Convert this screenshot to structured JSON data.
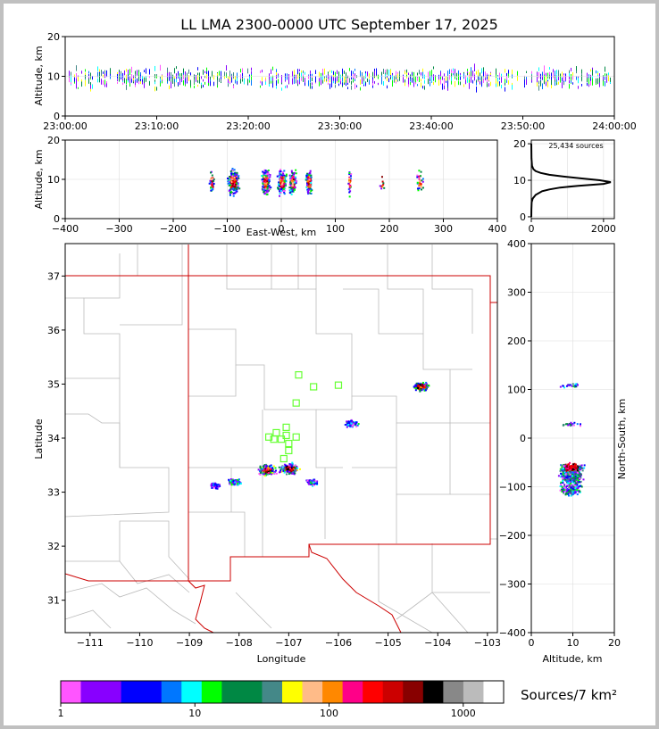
{
  "title": "LL LMA 2300-0000 UTC September 17, 2025",
  "colorbar": {
    "label": "Sources/7 km²",
    "tick_labels": [
      "1",
      "10",
      "100",
      "1000"
    ],
    "colors": [
      "#ff55ff",
      "#8800ff",
      "#8800ff",
      "#0000ff",
      "#0000ff",
      "#0077ff",
      "#00ffff",
      "#00ff00",
      "#008844",
      "#008844",
      "#448888",
      "#ffff00",
      "#ffbb88",
      "#ff8800",
      "#ff0088",
      "#ff0000",
      "#cc0000",
      "#880000",
      "#000000",
      "#888888",
      "#bbbbbb",
      "#ffffff"
    ]
  },
  "chart_data": [
    {
      "id": "time-altitude",
      "type": "scatter",
      "ylabel": "Altitude, km",
      "ylim": [
        0,
        20
      ],
      "yticks": [
        "0",
        "10",
        "20"
      ],
      "xlim": [
        "23:00:00",
        "24:00:00"
      ],
      "xticks": [
        "23:00:00",
        "23:10:00",
        "23:20:00",
        "23:30:00",
        "23:40:00",
        "23:50:00",
        "24:00:00"
      ],
      "altitude_band": [
        5,
        14
      ],
      "peak_altitude": 9.5
    },
    {
      "id": "east-west-altitude",
      "type": "scatter",
      "xlabel": "East-West, km",
      "ylabel": "Altitude, km",
      "xlim": [
        -400,
        400
      ],
      "ylim": [
        0,
        20
      ],
      "xticks": [
        "−400",
        "−300",
        "−200",
        "−100",
        "0",
        "100",
        "200",
        "300",
        "400"
      ],
      "yticks": [
        "0",
        "10",
        "20"
      ],
      "clusters_ew_km": [
        -130,
        -90,
        -30,
        0,
        20,
        50,
        125,
        185,
        255
      ]
    },
    {
      "id": "altitude-histogram",
      "type": "line",
      "annotation": "25,434 sources",
      "xlim": [
        0,
        2300
      ],
      "ylim": [
        -0.5,
        21
      ],
      "xticks": [
        "0",
        "2000"
      ],
      "yticks": [
        "0",
        "10",
        "20"
      ],
      "series": [
        {
          "altitude": [
            0,
            2,
            4,
            5,
            6,
            7,
            7.5,
            8,
            8.5,
            9,
            9.5,
            10,
            10.5,
            11,
            11.5,
            12,
            12.5,
            13,
            14,
            16,
            18,
            20
          ],
          "count": [
            0,
            2,
            10,
            40,
            120,
            300,
            500,
            800,
            1300,
            2000,
            2200,
            1900,
            1400,
            900,
            500,
            260,
            120,
            60,
            20,
            6,
            2,
            0
          ]
        }
      ]
    },
    {
      "id": "plan-view-map",
      "type": "scatter",
      "xlabel": "Longitude",
      "ylabel": "Latitude",
      "xlim": [
        -111.5,
        -102.8
      ],
      "ylim": [
        30.4,
        37.6
      ],
      "xticks": [
        "−111",
        "−110",
        "−109",
        "−108",
        "−107",
        "−106",
        "−105",
        "−104",
        "−103"
      ],
      "yticks": [
        "31",
        "32",
        "33",
        "34",
        "35",
        "36",
        "37"
      ],
      "stations": [
        {
          "lon": -106.8,
          "lat": 35.17
        },
        {
          "lon": -106.5,
          "lat": 34.95
        },
        {
          "lon": -106.0,
          "lat": 34.98
        },
        {
          "lon": -106.85,
          "lat": 34.65
        },
        {
          "lon": -107.05,
          "lat": 34.2
        },
        {
          "lon": -107.25,
          "lat": 34.1
        },
        {
          "lon": -107.4,
          "lat": 34.02
        },
        {
          "lon": -107.3,
          "lat": 33.98
        },
        {
          "lon": -107.15,
          "lat": 33.98
        },
        {
          "lon": -107.05,
          "lat": 34.05
        },
        {
          "lon": -106.85,
          "lat": 34.02
        },
        {
          "lon": -107.0,
          "lat": 33.9
        },
        {
          "lon": -107.0,
          "lat": 33.77
        },
        {
          "lon": -107.1,
          "lat": 33.62
        }
      ],
      "clusters": [
        {
          "lon": -108.1,
          "lat": 33.2,
          "level": 2
        },
        {
          "lon": -108.5,
          "lat": 33.13,
          "level": 1
        },
        {
          "lon": -107.45,
          "lat": 33.42,
          "level": 4
        },
        {
          "lon": -107.0,
          "lat": 33.45,
          "level": 4
        },
        {
          "lon": -106.55,
          "lat": 33.2,
          "level": 2
        },
        {
          "lon": -104.35,
          "lat": 34.97,
          "level": 3
        },
        {
          "lon": -105.75,
          "lat": 34.28,
          "level": 2
        }
      ]
    },
    {
      "id": "altitude-north-south",
      "type": "scatter",
      "xlabel": "Altitude, km",
      "ylabel": "North-South, km",
      "xlim": [
        0,
        20
      ],
      "ylim": [
        -400,
        400
      ],
      "xticks": [
        "0",
        "10",
        "20"
      ],
      "yticks": [
        "−400",
        "−300",
        "−200",
        "−100",
        "0",
        "100",
        "200",
        "300",
        "400"
      ],
      "clusters_ns_km": [
        -60,
        -75,
        -85,
        -100,
        -110,
        30,
        110
      ]
    }
  ]
}
